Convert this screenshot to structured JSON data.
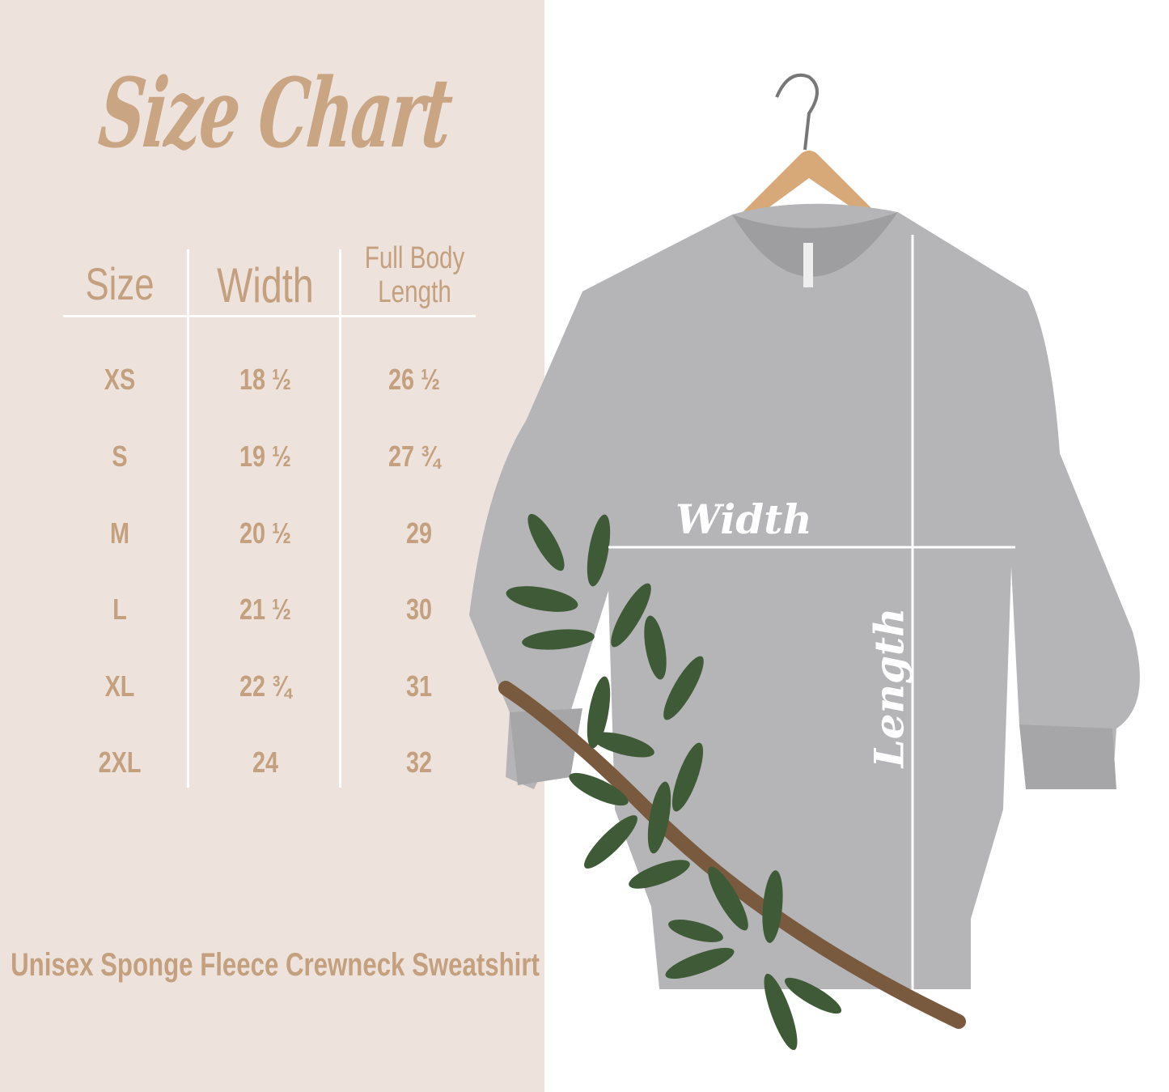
{
  "title": "Size Chart",
  "table": {
    "headers": {
      "size": "Size",
      "width": "Width",
      "length_line1": "Full Body",
      "length_line2": "Length"
    },
    "rows": [
      {
        "size": "XS",
        "width": "18 ½",
        "length": "26 ½"
      },
      {
        "size": "S",
        "width": "19 ½",
        "length": "27 ¾"
      },
      {
        "size": "M",
        "width": "20 ½",
        "length": "29"
      },
      {
        "size": "L",
        "width": "21 ½",
        "length": "30"
      },
      {
        "size": "XL",
        "width": "22 ¾",
        "length": "31"
      },
      {
        "size": "2XL",
        "width": "24",
        "length": "32"
      }
    ]
  },
  "product_name": "Unisex Sponge Fleece Crewneck Sweatshirt",
  "photo_labels": {
    "width": "Width",
    "length": "Length"
  },
  "colors": {
    "panel_bg": "#ede3dc",
    "text": "#c4a07f",
    "garment": "#b5b5b7"
  }
}
